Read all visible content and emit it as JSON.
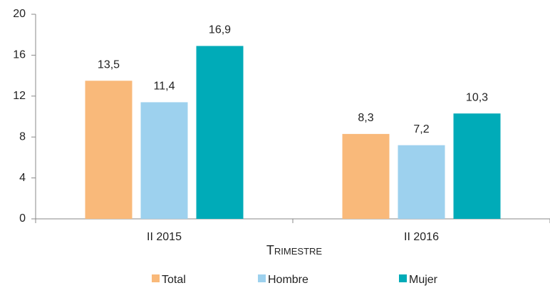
{
  "chart_data": {
    "type": "bar",
    "categories": [
      "II 2015",
      "II 2016"
    ],
    "series": [
      {
        "name": "Total",
        "color": "#f9b97a",
        "values": [
          13.5,
          8.3
        ],
        "value_labels": [
          "13,5",
          "8,3"
        ]
      },
      {
        "name": "Hombre",
        "color": "#9dd1ee",
        "values": [
          11.4,
          7.2
        ],
        "value_labels": [
          "11,4",
          "7,2"
        ]
      },
      {
        "name": "Mujer",
        "color": "#00abb8",
        "values": [
          16.9,
          10.3
        ],
        "value_labels": [
          "16,9",
          "10,3"
        ]
      }
    ],
    "x_label": "Trimestre",
    "ylim": [
      0,
      20
    ],
    "yticks": [
      0,
      4,
      8,
      12,
      16,
      20
    ],
    "grid": false,
    "legend": "bottom"
  }
}
